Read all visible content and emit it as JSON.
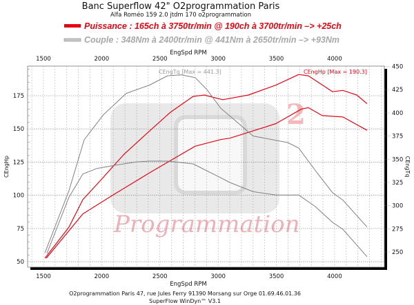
{
  "chart_data": {
    "type": "line",
    "title": "Banc Superflow 42\" O2programmation Paris",
    "subtitle": "Alfa Roméo 159 2.0 jtdm 170 o2programmation",
    "legend": [
      {
        "label": "Puissance : 165ch à 3750tr/min @ 190ch à 3700tr/min  –> +25ch",
        "color": "#e30613"
      },
      {
        "label": "Couple :  348Nm à 2400tr/min @ 441Nm à 2650tr/min –> +93Nm",
        "color": "#a8a8a8"
      }
    ],
    "xlabel": "EngSpd RPM",
    "ylabel_left": "CEngHp",
    "ylabel_right": "CEngTq",
    "xlim": [
      1364,
      4427
    ],
    "ylim_left": [
      45.9,
      197.3
    ],
    "ylim_right": [
      233.7,
      450.4
    ],
    "x_ticks": [
      "1500",
      "2000",
      "2500",
      "3000",
      "3500",
      "4000"
    ],
    "y_ticks_left": [
      "50",
      "75",
      "100",
      "125",
      "150",
      "175"
    ],
    "y_ticks_right": [
      "250",
      "275",
      "300",
      "325",
      "350",
      "375",
      "400",
      "425",
      "450"
    ],
    "grid": true,
    "annotations": {
      "torque_max": "CEngTq [Max = 441.3]",
      "power_max": "CEngHp [Max = 190.3]"
    },
    "series": [
      {
        "name": "Puissance modifiée",
        "axis": "left",
        "color": "#e30613",
        "x": [
          1512,
          1719,
          1838,
          1998,
          2193,
          2412,
          2590,
          2785,
          2886,
          2904,
          3040,
          3260,
          3496,
          3692,
          3775,
          3982,
          4071,
          4190,
          4278
        ],
        "y": [
          52.6,
          76,
          96.7,
          112,
          131,
          148.5,
          162.5,
          174.5,
          175.5,
          175,
          172,
          175.5,
          183,
          191,
          190,
          178,
          179,
          175.5,
          169
        ]
      },
      {
        "name": "Puissance origine",
        "axis": "left",
        "color": "#e30613",
        "x": [
          1524,
          1838,
          2092,
          2412,
          2685,
          2803,
          3022,
          3100,
          3301,
          3496,
          3716,
          3775,
          3893,
          4071,
          4278
        ],
        "y": [
          52.6,
          86,
          100,
          117,
          131,
          137,
          142,
          143,
          148.5,
          154,
          165,
          166,
          160,
          159,
          149
        ]
      },
      {
        "name": "Couple modifié",
        "axis": "right",
        "color": "#808080",
        "x": [
          1512,
          1719,
          1850,
          2015,
          2211,
          2412,
          2566,
          2685,
          2803,
          2904,
          3022,
          3200,
          3301,
          3597,
          3692,
          3834,
          3982,
          4071,
          4278
        ],
        "y": [
          249,
          316,
          371,
          398,
          421,
          430,
          440,
          441,
          438,
          425,
          405,
          386,
          375,
          368,
          362,
          338,
          314,
          306,
          277
        ]
      },
      {
        "name": "Couple origine",
        "axis": "right",
        "color": "#808080",
        "x": [
          1530,
          1719,
          1838,
          1956,
          2116,
          2294,
          2412,
          2566,
          2785,
          3022,
          3100,
          3301,
          3496,
          3692,
          3834,
          3982,
          4071,
          4278
        ],
        "y": [
          248.5,
          309,
          334,
          340,
          343.5,
          347,
          348,
          348,
          345,
          330,
          325,
          315,
          311.5,
          311.5,
          299,
          282,
          274.5,
          245
        ]
      }
    ],
    "watermark": "Programmation",
    "footer": [
      "O2programmation Paris 47, rue Jules Ferry 91390 Morsang sur Orge 01.69.46.01.36",
      "SuperFlow WinDyn™ V3.1"
    ]
  }
}
